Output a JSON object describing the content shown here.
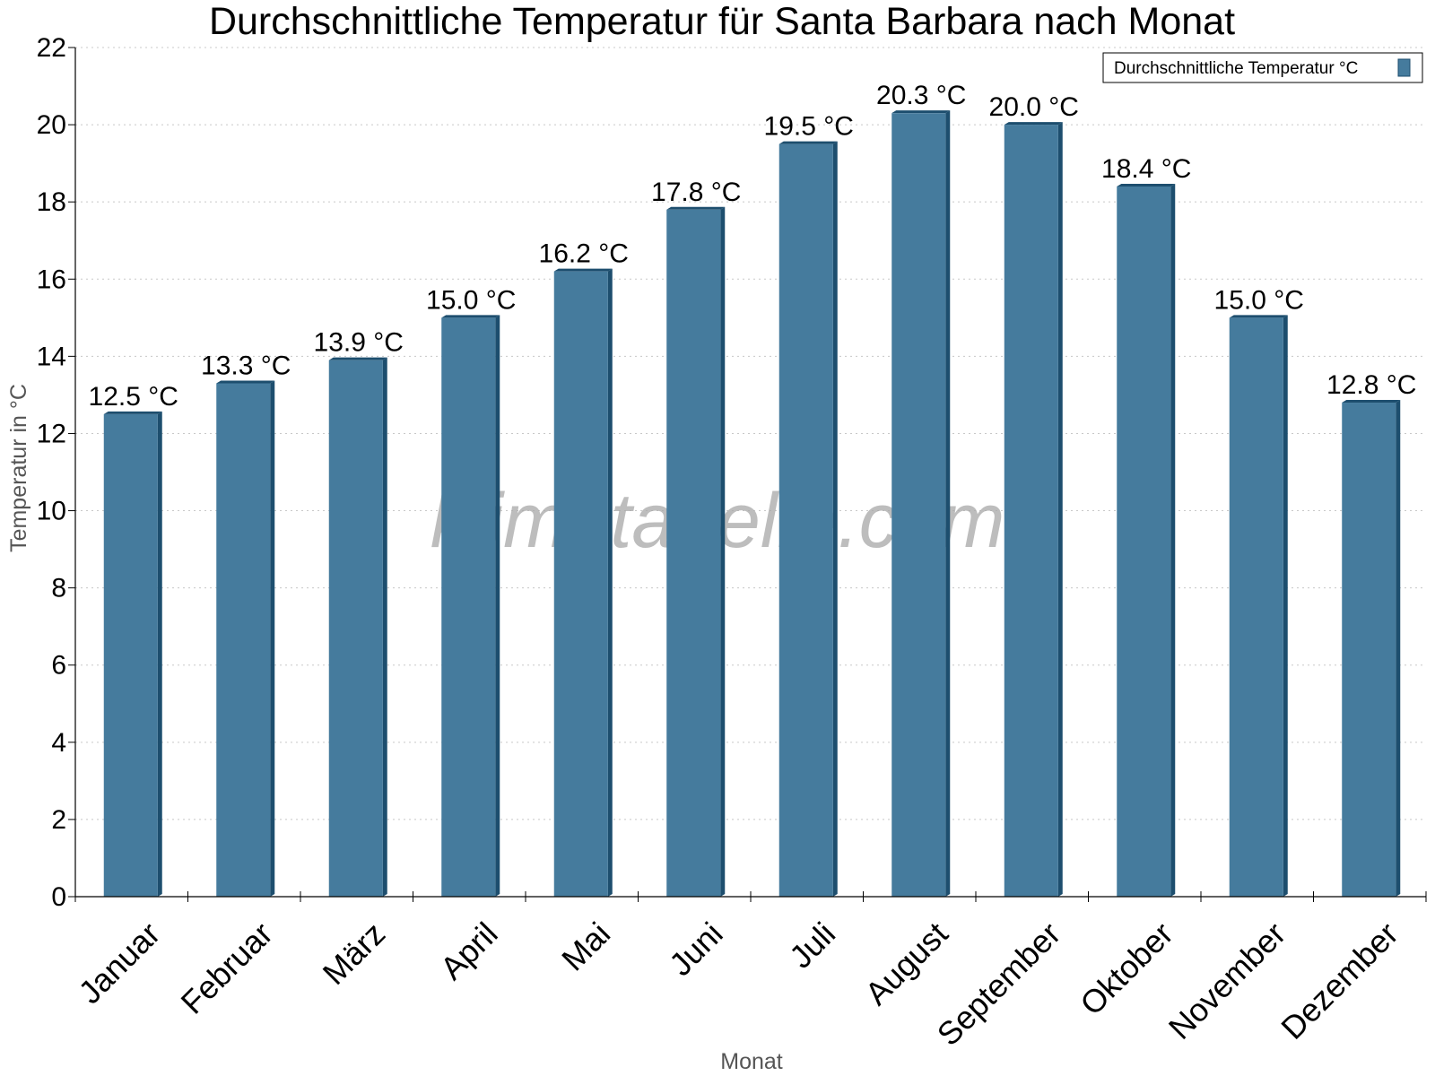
{
  "chart_data": {
    "type": "bar",
    "title": "Durchschnittliche Temperatur für Santa Barbara nach Monat",
    "xlabel": "Monat",
    "ylabel": "Temperatur in °C",
    "categories": [
      "Januar",
      "Februar",
      "März",
      "April",
      "Mai",
      "Juni",
      "Juli",
      "August",
      "September",
      "Oktober",
      "November",
      "Dezember"
    ],
    "series": [
      {
        "name": "Durchschnittliche Temperatur °C",
        "values": [
          12.5,
          13.3,
          13.9,
          15.0,
          16.2,
          17.8,
          19.5,
          20.3,
          20.0,
          18.4,
          15.0,
          12.8
        ],
        "labels": [
          "12.5 °C",
          "13.3 °C",
          "13.9 °C",
          "15.0 °C",
          "16.2 °C",
          "17.8 °C",
          "19.5 °C",
          "20.3 °C",
          "20.0 °C",
          "18.4 °C",
          "15.0 °C",
          "12.8 °C"
        ],
        "color": "#457b9d",
        "edge_color": "#1d4e6e"
      }
    ],
    "ylim": [
      0,
      22
    ],
    "yticks": [
      0,
      2,
      4,
      6,
      8,
      10,
      12,
      14,
      16,
      18,
      20,
      22
    ],
    "grid": true,
    "legend_position": "top-right",
    "watermark": "klimatabelle.com"
  }
}
